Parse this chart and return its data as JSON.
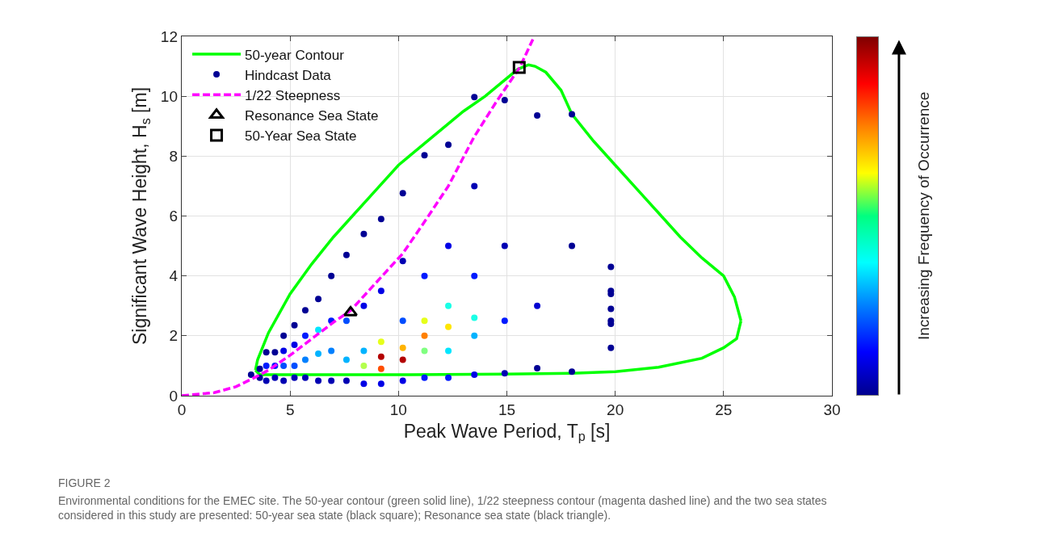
{
  "chart_data": {
    "type": "scatter",
    "xlabel": "Peak Wave Period, T$_{p}$ [s]",
    "ylabel": "Significant Wave Height, H$_{s}$ [m]",
    "clabel": "Increasing Frequency of Occurrence",
    "xlim": [
      0,
      30
    ],
    "xticks": [
      0,
      5,
      10,
      15,
      20,
      25,
      30
    ],
    "ylim": [
      0,
      12
    ],
    "yticks": [
      0,
      2,
      4,
      6,
      8,
      10,
      12
    ],
    "grid": true,
    "legend": "top left",
    "annotations": [
      "FIGURE 2",
      "Environmental conditions for the EMEC site. The 50-year contour (green solid line), 1/22 steepness contour (magenta dashed line) and the two sea states considered in this study are presented: 50-year sea state (black square); Resonance sea state (black triangle)."
    ],
    "series": [
      {
        "name": "50-year Contour",
        "type": "line",
        "color": "#00ff00",
        "line_style": "solid",
        "x": [
          3.4,
          3.5,
          4,
          5,
          6,
          7,
          8,
          9,
          10,
          11,
          12,
          13,
          14,
          15,
          15.5,
          16,
          16.3,
          16.8,
          17.5,
          18,
          19,
          20,
          21,
          22,
          23,
          24,
          25,
          25.5,
          25.8
        ],
        "values": [
          0.85,
          1.2,
          2.1,
          3.4,
          4.4,
          5.3,
          6.1,
          6.9,
          7.7,
          8.3,
          8.9,
          9.5,
          10.0,
          10.6,
          10.9,
          11.05,
          11.0,
          10.8,
          10.2,
          9.4,
          8.5,
          7.7,
          6.9,
          6.1,
          5.3,
          4.6,
          4.0,
          3.3,
          2.5
        ]
      },
      {
        "type": "line",
        "color": "#00ff00",
        "line_style": "solid",
        "x": [
          3.4,
          3.6,
          5,
          10,
          15,
          18,
          20,
          22,
          24,
          25,
          25.6,
          25.8
        ],
        "values": [
          0.85,
          0.7,
          0.7,
          0.7,
          0.72,
          0.75,
          0.8,
          0.95,
          1.25,
          1.6,
          1.9,
          2.5
        ]
      },
      {
        "name": "Hindcast Data",
        "marker": "circle",
        "x": [
          3.2,
          3.6,
          3.6,
          3.9,
          3.9,
          3.9,
          4.3,
          4.3,
          4.3,
          4.7,
          4.7,
          4.7,
          4.7,
          5.2,
          5.2,
          5.2,
          5.2,
          5.7,
          5.7,
          5.7,
          5.7,
          6.3,
          6.3,
          6.3,
          6.3,
          6.9,
          6.9,
          6.9,
          6.9,
          7.6,
          7.6,
          7.6,
          7.6,
          8.4,
          8.4,
          8.4,
          8.4,
          8.4,
          9.2,
          9.2,
          9.2,
          9.2,
          9.2,
          9.2,
          10.2,
          10.2,
          10.2,
          10.2,
          10.2,
          10.2,
          11.2,
          11.2,
          11.2,
          11.2,
          11.2,
          11.2,
          12.3,
          12.3,
          12.3,
          12.3,
          12.3,
          12.3,
          13.5,
          13.5,
          13.5,
          13.5,
          13.5,
          13.5,
          14.9,
          14.9,
          14.9,
          14.9,
          16.4,
          16.4,
          16.4,
          18,
          18,
          18,
          19.8,
          19.8,
          19.8,
          19.8,
          19.8,
          19.8,
          19.8
        ],
        "values": [
          0.7,
          0.6,
          0.9,
          0.5,
          1.0,
          1.45,
          0.6,
          1.0,
          1.45,
          0.5,
          1.0,
          1.5,
          2.0,
          0.6,
          1.0,
          1.7,
          2.35,
          0.6,
          1.2,
          2.0,
          2.85,
          0.5,
          1.4,
          2.2,
          3.23,
          0.5,
          1.5,
          2.5,
          4.0,
          0.5,
          1.2,
          2.5,
          4.7,
          0.4,
          1.0,
          1.5,
          3.0,
          5.4,
          0.4,
          0.9,
          1.3,
          1.8,
          3.5,
          5.9,
          0.5,
          1.2,
          1.6,
          2.5,
          4.5,
          6.76,
          0.6,
          1.5,
          2.0,
          2.5,
          4.0,
          8.03,
          0.6,
          1.5,
          2.3,
          3.0,
          5.0,
          8.38,
          0.7,
          2.0,
          2.6,
          4.0,
          7.0,
          9.97,
          0.75,
          2.5,
          5.0,
          9.87,
          0.92,
          3.0,
          9.36,
          0.8,
          5.0,
          9.4,
          1.6,
          2.4,
          2.5,
          2.9,
          3.4,
          3.5,
          4.3
        ],
        "colors": [
          "#000094",
          "#000094",
          "#000094",
          "#0000b3",
          "#001aff",
          "#000094",
          "#0000b3",
          "#001aff",
          "#000094",
          "#0000b3",
          "#004dff",
          "#0000e6",
          "#000094",
          "#0000b3",
          "#004dff",
          "#0000e6",
          "#000094",
          "#0000b3",
          "#0080ff",
          "#001aff",
          "#000094",
          "#0000b3",
          "#00b3ff",
          "#00e6ff",
          "#000094",
          "#0000b3",
          "#0080ff",
          "#001aff",
          "#000094",
          "#0000b3",
          "#00b3ff",
          "#004dff",
          "#000094",
          "#0000e6",
          "#b3ff4d",
          "#00b3ff",
          "#0000e6",
          "#000094",
          "#0000e6",
          "#ff4d00",
          "#b30000",
          "#e6ff1a",
          "#0000e6",
          "#000094",
          "#0000e6",
          "#b30000",
          "#ffb300",
          "#004dff",
          "#0000b3",
          "#000094",
          "#001aff",
          "#80ff80",
          "#ff8000",
          "#e6ff1a",
          "#001aff",
          "#000094",
          "#001aff",
          "#00e6ff",
          "#ffe600",
          "#1affe6",
          "#0000e6",
          "#000094",
          "#0000e6",
          "#00b3ff",
          "#1affe6",
          "#001aff",
          "#0000b3",
          "#000094",
          "#0000b3",
          "#001aff",
          "#0000b3",
          "#000094",
          "#000094",
          "#0000d1",
          "#000094",
          "#000094",
          "#000094",
          "#000094",
          "#000094",
          "#000094",
          "#000094",
          "#000094",
          "#000094",
          "#000094",
          "#000094"
        ]
      },
      {
        "name": "1/22 Steepness",
        "type": "line",
        "color": "#ff00ff",
        "line_style": "dashed",
        "x": [
          0,
          1.5,
          2.5,
          3.24,
          4,
          5,
          6,
          7,
          7.8,
          9.2,
          10.2,
          11.24,
          12.3,
          13.48,
          14.5,
          15.6,
          16.2
        ],
        "values": [
          0,
          0.1,
          0.3,
          0.56,
          0.85,
          1.35,
          1.9,
          2.45,
          2.85,
          3.96,
          4.75,
          5.85,
          7.0,
          8.63,
          9.8,
          10.97,
          11.9
        ]
      },
      {
        "name": "Resonance Sea State",
        "color": "#000000",
        "marker": "triangle",
        "x": [
          7.79
        ],
        "values": [
          2.78
        ]
      },
      {
        "name": "50-Year Sea State",
        "color": "#000000",
        "marker": "square",
        "x": [
          15.57
        ],
        "values": [
          10.96
        ]
      }
    ]
  }
}
